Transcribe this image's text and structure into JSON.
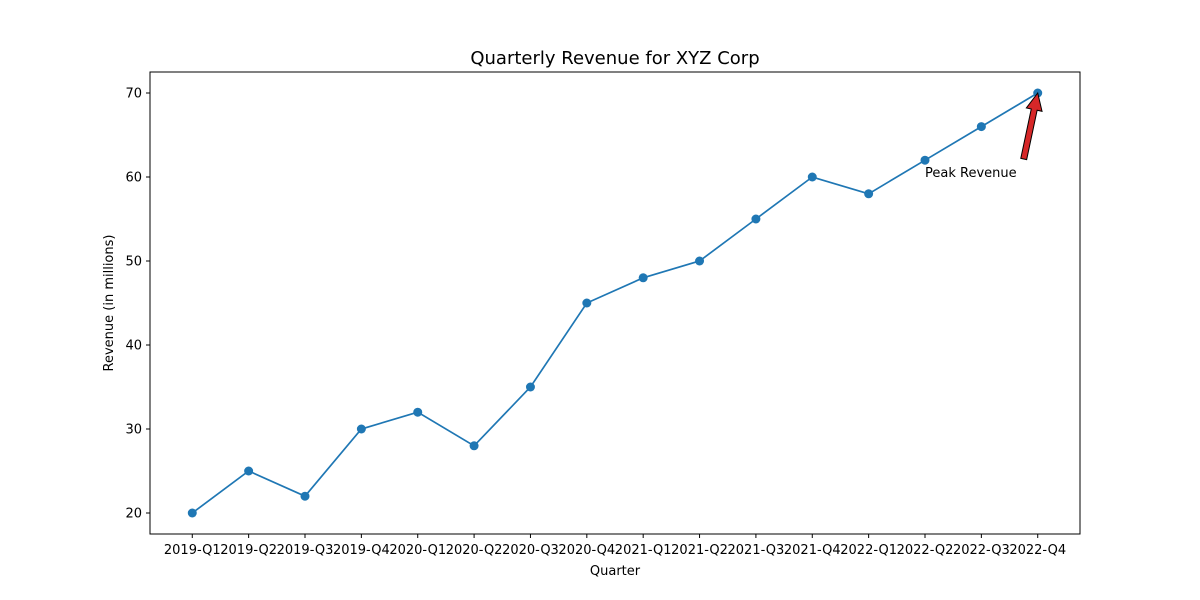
{
  "chart_data": {
    "type": "line",
    "title": "Quarterly Revenue for XYZ Corp",
    "xlabel": "Quarter",
    "ylabel": "Revenue (in millions)",
    "categories": [
      "2019-Q1",
      "2019-Q2",
      "2019-Q3",
      "2019-Q4",
      "2020-Q1",
      "2020-Q2",
      "2020-Q3",
      "2020-Q4",
      "2021-Q1",
      "2021-Q2",
      "2021-Q3",
      "2021-Q4",
      "2022-Q1",
      "2022-Q2",
      "2022-Q3",
      "2022-Q4"
    ],
    "series": [
      {
        "values": [
          20,
          25,
          22,
          30,
          32,
          28,
          35,
          45,
          48,
          50,
          55,
          60,
          58,
          62,
          66,
          70
        ]
      }
    ],
    "ylim": [
      17.5,
      72.5
    ],
    "yticks": [
      20,
      30,
      40,
      50,
      60,
      70
    ],
    "grid": false,
    "line_color": "#1f77b4",
    "annotation": {
      "text": "Peak Revenue",
      "category": "2022-Q4",
      "value": 70,
      "arrow_color": "#d62728"
    }
  }
}
